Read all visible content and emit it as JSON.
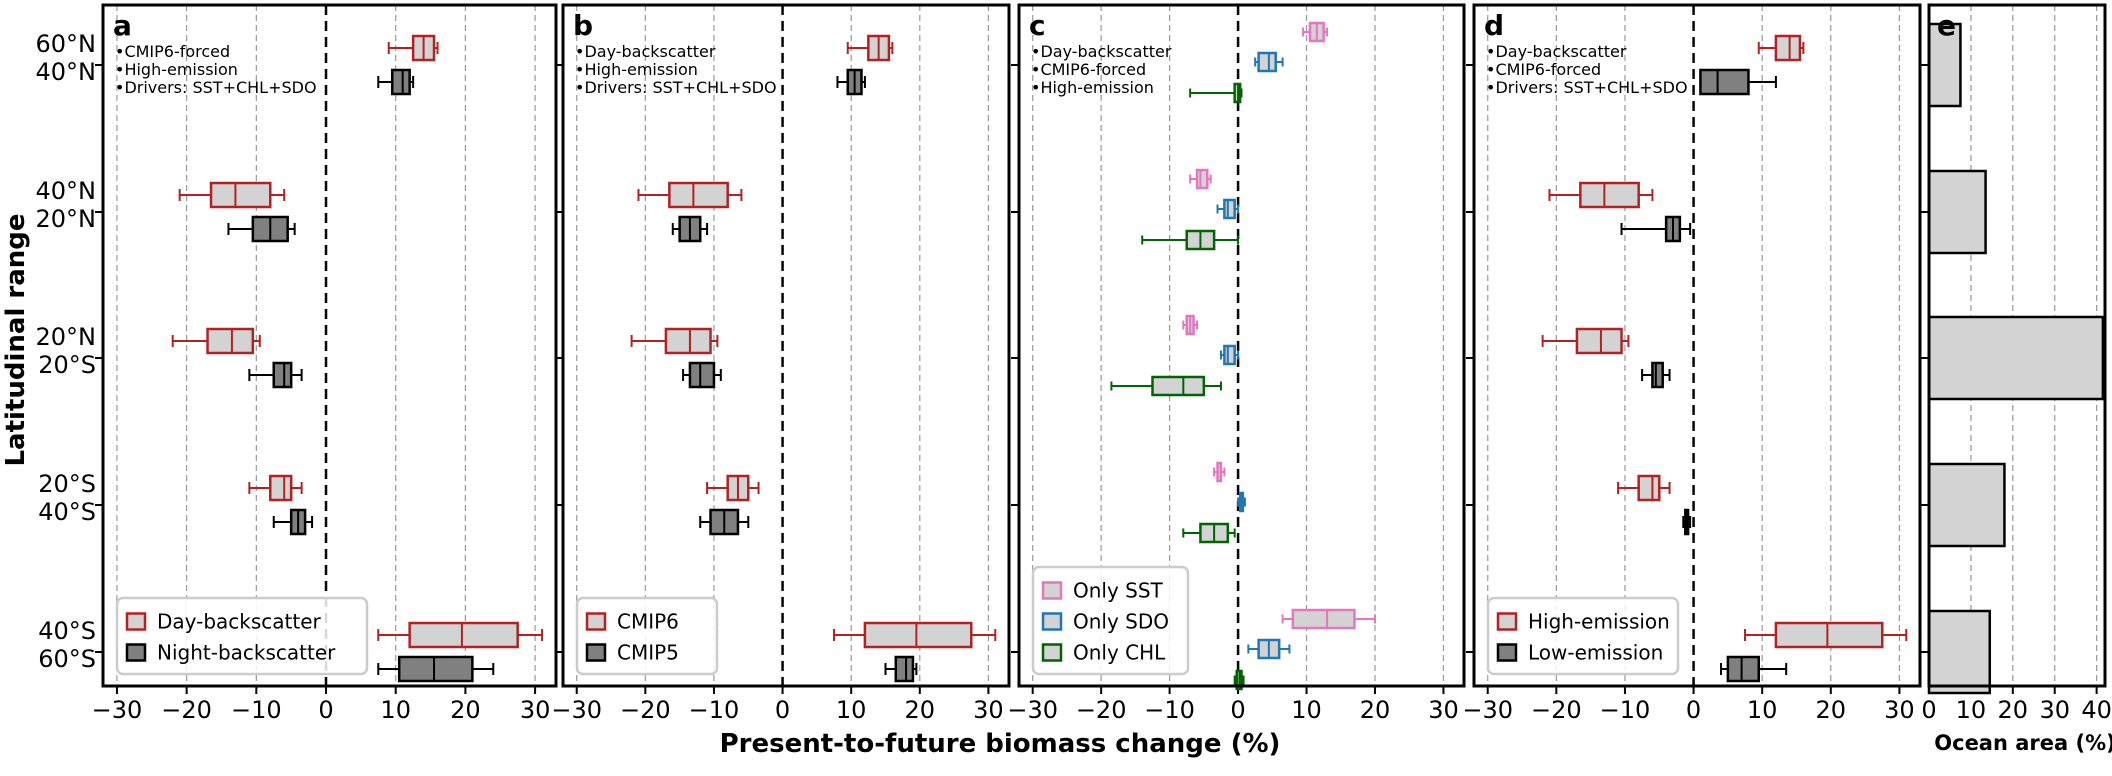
{
  "chart_data": {
    "type": "box",
    "ylabel": "Latitudinal range",
    "xlabel": "Present-to-future biomass change (%)",
    "bands": [
      {
        "top": "60°N",
        "bottom": "40°N"
      },
      {
        "top": "40°N",
        "bottom": "20°N"
      },
      {
        "top": "20°N",
        "bottom": "20°S"
      },
      {
        "top": "20°S",
        "bottom": "40°S"
      },
      {
        "top": "40°S",
        "bottom": "60°S"
      }
    ],
    "xlim": [
      -32,
      33
    ],
    "xticks": [
      -30,
      -20,
      -10,
      0,
      10,
      20,
      30
    ],
    "panels": [
      {
        "label": "a",
        "notes": [
          "•CMIP6-forced",
          "•High-emission",
          "•Drivers: SST+CHL+SDO"
        ],
        "series": [
          {
            "name": "Day-backscatter",
            "color": "#b22222",
            "fill": "#d3d3d3",
            "boxes": [
              [
                9,
                12.5,
                14,
                15.5,
                16
              ],
              [
                -21,
                -16.5,
                -13,
                -8,
                -6
              ],
              [
                -22,
                -17,
                -13.5,
                -10.5,
                -9.5
              ],
              [
                -11,
                -8,
                -6,
                -5,
                -3.5
              ],
              [
                7.5,
                12,
                19.5,
                27.5,
                31
              ]
            ]
          },
          {
            "name": "Night-backscatter",
            "color": "#000000",
            "fill": "#808080",
            "boxes": [
              [
                7.5,
                9.5,
                11,
                12,
                12.5
              ],
              [
                -14,
                -10.5,
                -8,
                -5.5,
                -4.5
              ],
              [
                -11,
                -7.5,
                -6,
                -5,
                -3.5
              ],
              [
                -7.5,
                -5,
                -4,
                -3,
                -2
              ],
              [
                7.5,
                10.5,
                15.5,
                21,
                24
              ]
            ]
          }
        ],
        "legend": [
          "Day-backscatter",
          "Night-backscatter"
        ]
      },
      {
        "label": "b",
        "notes": [
          "•Day-backscatter",
          "•High-emission",
          "•Drivers: SST+CHL+SDO"
        ],
        "series": [
          {
            "name": "CMIP6",
            "color": "#b22222",
            "fill": "#d3d3d3",
            "boxes": [
              [
                9.5,
                12.5,
                14,
                15.5,
                16
              ],
              [
                -21,
                -16.5,
                -13,
                -8,
                -6
              ],
              [
                -22,
                -17,
                -13.5,
                -10.5,
                -9.5
              ],
              [
                -11,
                -8,
                -6.5,
                -5,
                -3.5
              ],
              [
                7.5,
                12,
                19.5,
                27.5,
                31
              ]
            ]
          },
          {
            "name": "CMIP5",
            "color": "#000000",
            "fill": "#808080",
            "boxes": [
              [
                8,
                9.5,
                10.5,
                11.5,
                12
              ],
              [
                -16,
                -15,
                -13.5,
                -12,
                -11
              ],
              [
                -14.5,
                -13.5,
                -12,
                -10,
                -9
              ],
              [
                -12,
                -10.5,
                -8.5,
                -6.5,
                -5
              ],
              [
                15,
                16.5,
                18,
                19,
                19.5
              ]
            ]
          }
        ],
        "legend": [
          "CMIP6",
          "CMIP5"
        ]
      },
      {
        "label": "c",
        "notes": [
          "•Day-backscatter",
          "•CMIP6-forced",
          "•High-emission"
        ],
        "series": [
          {
            "name": "Only SST",
            "color": "#e377c2",
            "fill": "#d3d3d3",
            "boxes": [
              [
                9.5,
                10.5,
                11.5,
                12.5,
                13
              ],
              [
                -7,
                -6,
                -5.5,
                -4.5,
                -4
              ],
              [
                -8,
                -7.5,
                -7,
                -6.5,
                -6
              ],
              [
                -3.5,
                -3,
                -2.5,
                -2.5,
                -2
              ],
              [
                6.5,
                8,
                13,
                17,
                20
              ]
            ]
          },
          {
            "name": "Only SDO",
            "color": "#1f77b4",
            "fill": "#d3d3d3",
            "boxes": [
              [
                2.5,
                3,
                4.5,
                5.5,
                6.5
              ],
              [
                -3,
                -2,
                -1.5,
                -0.5,
                0
              ],
              [
                -2.5,
                -2,
                -1.5,
                -0.5,
                0
              ],
              [
                0,
                0.3,
                0.5,
                0.7,
                1
              ],
              [
                1.5,
                3,
                4.5,
                6,
                7.5
              ]
            ]
          },
          {
            "name": "Only CHL",
            "color": "#006400",
            "fill": "#d3d3d3",
            "boxes": [
              [
                -7,
                -0.5,
                0,
                0.3,
                0.5
              ],
              [
                -14,
                -7.5,
                -5.5,
                -3.5,
                0
              ],
              [
                -18.5,
                -12.5,
                -8,
                -5,
                -2.5
              ],
              [
                -8,
                -5.5,
                -3.5,
                -1.5,
                -0.5
              ],
              [
                -0.5,
                -0.2,
                0.2,
                0.5,
                0.8
              ]
            ]
          }
        ],
        "legend": [
          "Only SST",
          "Only SDO",
          "Only CHL"
        ]
      },
      {
        "label": "d",
        "notes": [
          "•Day-backscatter",
          "•CMIP6-forced",
          "•Drivers: SST+CHL+SDO"
        ],
        "series": [
          {
            "name": "High-emission",
            "color": "#b22222",
            "fill": "#d3d3d3",
            "boxes": [
              [
                9.5,
                12,
                14,
                15.5,
                16
              ],
              [
                -21,
                -16.5,
                -13,
                -8,
                -6
              ],
              [
                -22,
                -17,
                -13.5,
                -10.5,
                -9.5
              ],
              [
                -11,
                -8,
                -6,
                -5,
                -3.5
              ],
              [
                7.5,
                12,
                19.5,
                27.5,
                31
              ]
            ]
          },
          {
            "name": "Low-emission",
            "color": "#000000",
            "fill": "#808080",
            "boxes": [
              [
                1,
                1,
                3.5,
                8,
                12
              ],
              [
                -10.5,
                -4,
                -3,
                -2,
                -0.5
              ],
              [
                -7.5,
                -6,
                -5.5,
                -4.5,
                -3.5
              ],
              [
                -1.5,
                -1.2,
                -1,
                -0.8,
                -0.5
              ],
              [
                4,
                5,
                7,
                9.5,
                13.5
              ]
            ]
          }
        ],
        "legend": [
          "High-emission",
          "Low-emission"
        ]
      }
    ],
    "area_panel": {
      "label": "e",
      "type": "bar",
      "xlabel": "Ocean area (%)",
      "xlim": [
        0,
        42
      ],
      "xticks": [
        0,
        10,
        20,
        30,
        40
      ],
      "values": [
        7.5,
        13.5,
        41.5,
        18,
        14.5
      ],
      "fill": "#d3d3d3"
    }
  }
}
